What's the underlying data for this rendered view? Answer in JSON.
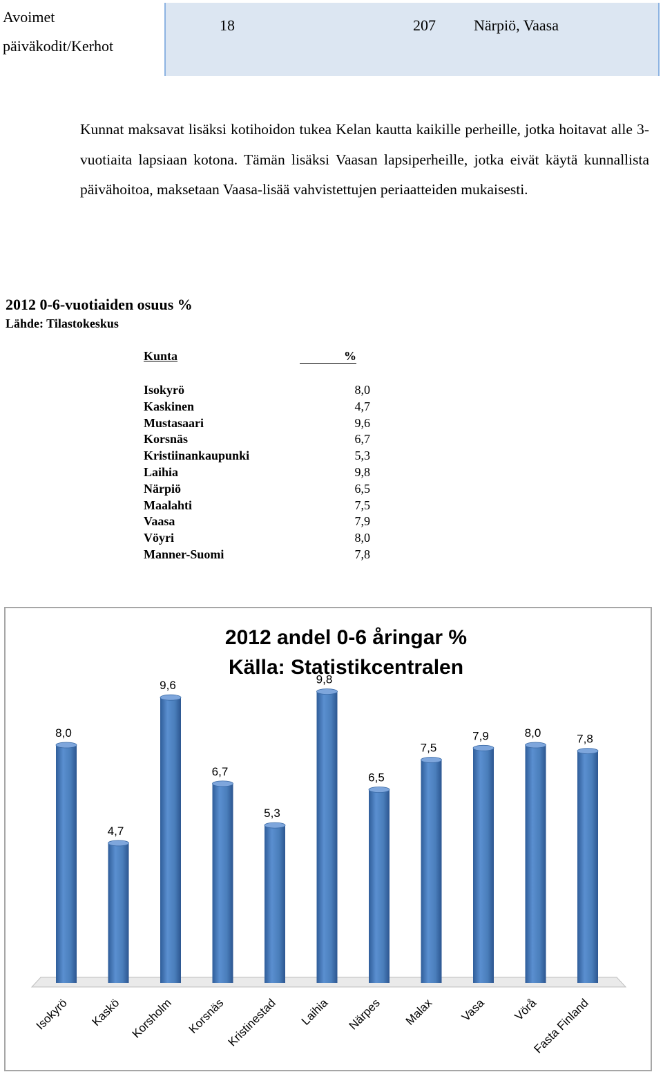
{
  "table_row": {
    "col1_line1": "Avoimet",
    "col1_line2": "päiväkodit/Kerhot",
    "col2": "18",
    "col3": "207",
    "col4": "Närpiö, Vaasa"
  },
  "paragraph": "Kunnat maksavat lisäksi kotihoidon tukea Kelan kautta kaikille perheille, jotka hoitavat alle 3-vuotiaita lapsiaan kotona.  Tämän lisäksi Vaasan lapsiperheille, jotka eivät käytä kunnallista päivähoitoa, maksetaan Vaasa-lisää vahvistettujen periaatteiden mukaisesti.",
  "stats": {
    "title": "2012 0-6-vuotiaiden osuus %",
    "source": "Lähde: Tilastokeskus",
    "header_municipality": "Kunta",
    "header_percent": "%",
    "rows": [
      {
        "name": "Isokyrö",
        "value": "8,0"
      },
      {
        "name": "Kaskinen",
        "value": "4,7"
      },
      {
        "name": "Mustasaari",
        "value": "9,6"
      },
      {
        "name": "Korsnäs",
        "value": "6,7"
      },
      {
        "name": "Kristiinankaupunki",
        "value": "5,3"
      },
      {
        "name": "Laihia",
        "value": "9,8"
      },
      {
        "name": "Närpiö",
        "value": "6,5"
      },
      {
        "name": "Maalahti",
        "value": "7,5"
      },
      {
        "name": "Vaasa",
        "value": "7,9"
      },
      {
        "name": "Vöyri",
        "value": "8,0"
      },
      {
        "name": "Manner-Suomi",
        "value": "7,8"
      }
    ]
  },
  "chart_data": {
    "type": "bar",
    "title_line1": "2012 andel 0-6 åringar %",
    "title_line2": "Källa: Statistikcentralen",
    "categories": [
      "Isokyrö",
      "Kaskö",
      "Korsholm",
      "Korsnäs",
      "Kristinestad",
      "Laihia",
      "Närpes",
      "Malax",
      "Vasa",
      "Vörå",
      "Fasta Finland"
    ],
    "values": [
      8.0,
      4.7,
      9.6,
      6.7,
      5.3,
      9.8,
      6.5,
      7.5,
      7.9,
      8.0,
      7.8
    ],
    "labels": [
      "8,0",
      "4,7",
      "9,6",
      "6,7",
      "5,3",
      "9,8",
      "6,5",
      "7,5",
      "7,9",
      "8,0",
      "7,8"
    ],
    "bar_color": "#4a7ebb",
    "ylim": [
      0,
      10
    ],
    "grid": false,
    "legend": "none"
  }
}
